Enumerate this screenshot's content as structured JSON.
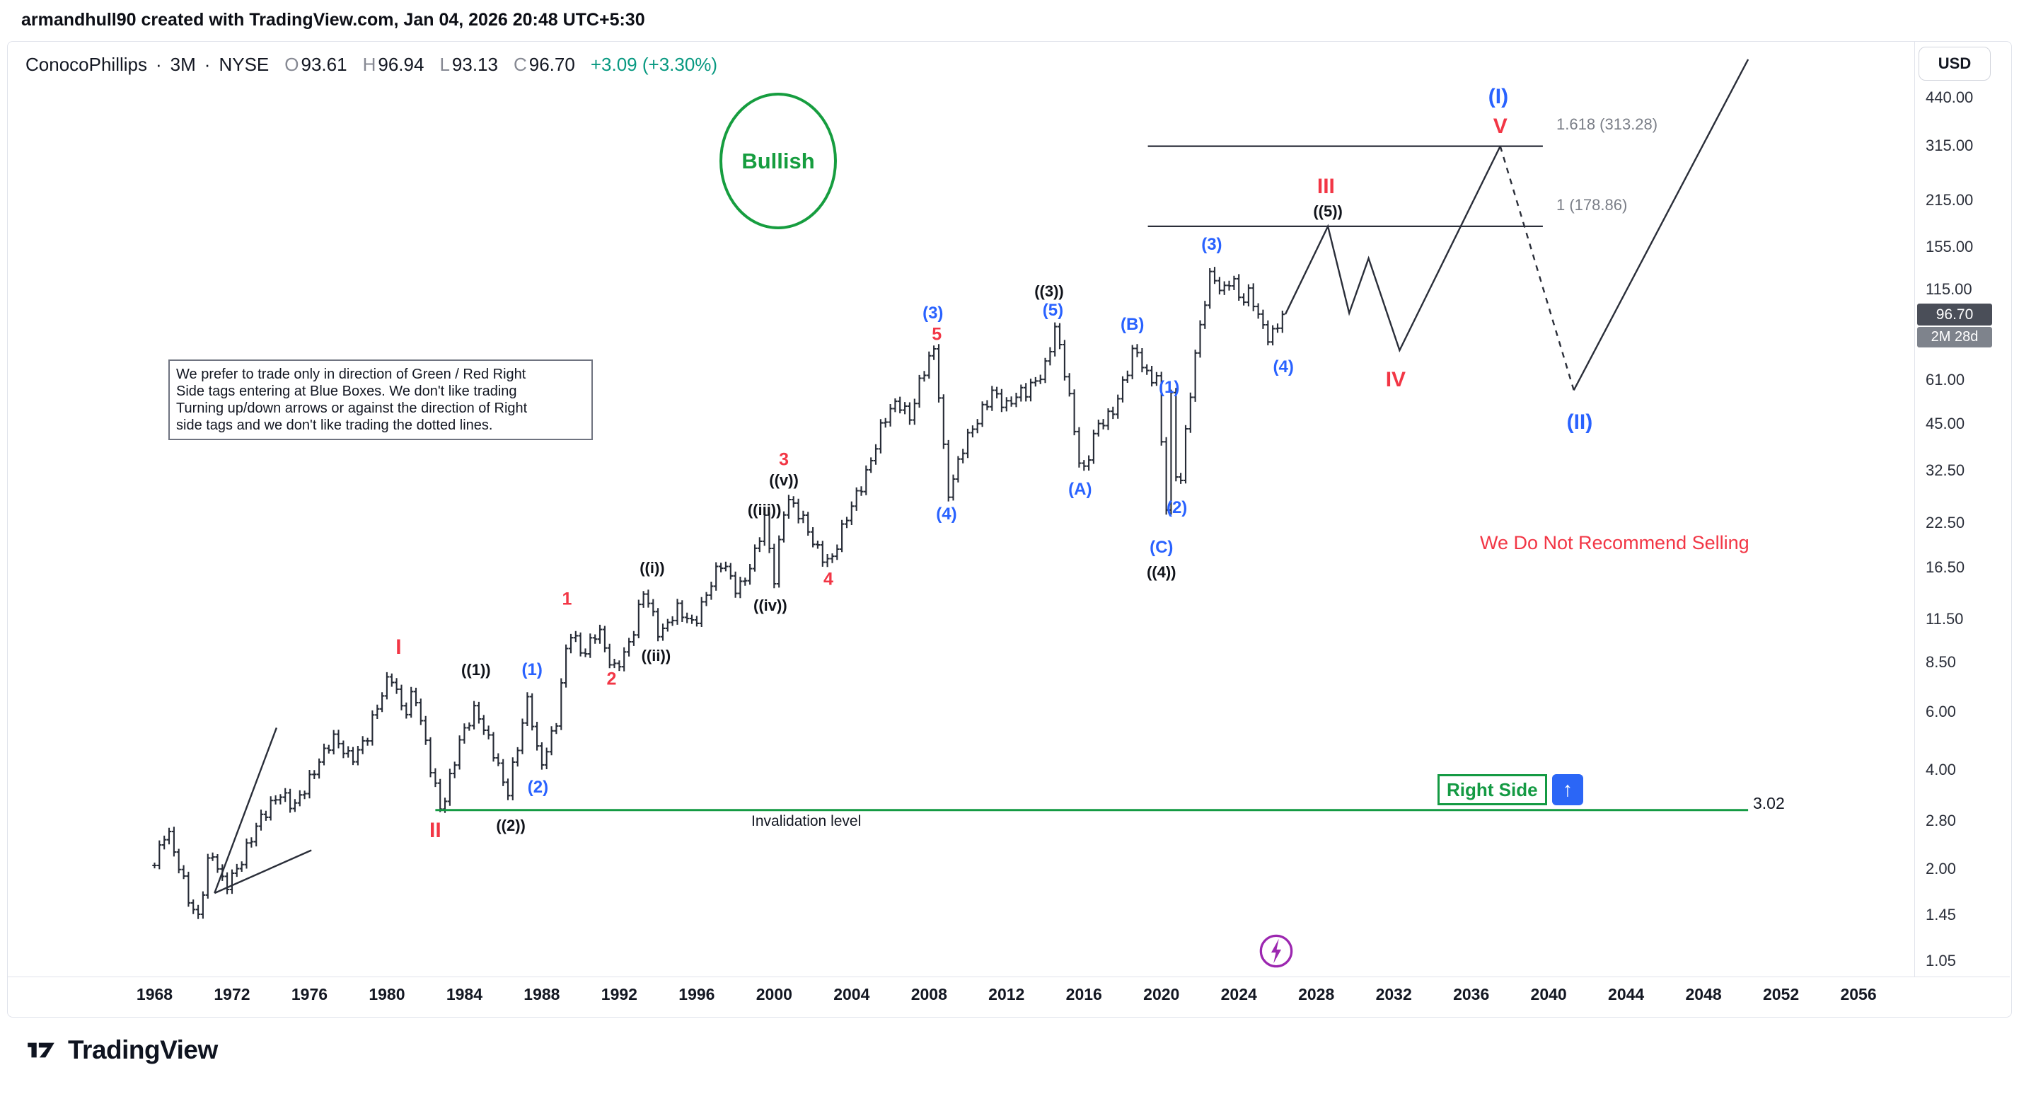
{
  "top_bar": {
    "attribution": "armandhull90 created with TradingView.com, Jan 04, 2026 20:48 UTC+5:30"
  },
  "header": {
    "symbol": "ConocoPhillips",
    "sep": "·",
    "interval": "3M",
    "exchange": "NYSE",
    "o_label": "O",
    "o": "93.61",
    "h_label": "H",
    "h": "96.94",
    "l_label": "L",
    "l": "93.13",
    "c_label": "C",
    "c": "96.70",
    "change": "+3.09 (+3.30%)"
  },
  "price_axis": {
    "currency": "USD",
    "ticks": [
      "440.00",
      "315.00",
      "215.00",
      "155.00",
      "115.00",
      "61.00",
      "45.00",
      "32.50",
      "22.50",
      "16.50",
      "11.50",
      "8.50",
      "6.00",
      "4.00",
      "2.80",
      "2.00",
      "1.45",
      "1.05"
    ],
    "last_price": "96.70",
    "countdown": "2M 28d"
  },
  "x_axis": {
    "years": [
      "1968",
      "1972",
      "1976",
      "1980",
      "1984",
      "1988",
      "1992",
      "1996",
      "2000",
      "2004",
      "2008",
      "2012",
      "2016",
      "2020",
      "2024",
      "2028",
      "2032",
      "2036",
      "2040",
      "2044",
      "2048",
      "2052",
      "2056"
    ]
  },
  "annotations": {
    "bullish_label": "Bullish",
    "textbox_lines": [
      "We prefer to trade only in direction of Green / Red Right",
      "Side tags entering at Blue Boxes. We don't like trading",
      "Turning up/down arrows or against the direction of Right",
      "side tags and we don't like trading the dotted lines."
    ],
    "right_side_label": "Right Side",
    "up_arrow": "↑",
    "no_sell_text": "We Do Not Recommend Selling"
  },
  "wave_labels": [
    {
      "text": "I",
      "year": 1980.6,
      "price": 9.4,
      "color": "red",
      "big": true
    },
    {
      "text": "II",
      "year": 1982.5,
      "price": 2.61,
      "color": "red",
      "big": true
    },
    {
      "text": "1",
      "year": 1989.3,
      "price": 13.2,
      "color": "red"
    },
    {
      "text": "2",
      "year": 1991.6,
      "price": 7.55,
      "color": "red"
    },
    {
      "text": "3",
      "year": 2000.5,
      "price": 34.9,
      "color": "red"
    },
    {
      "text": "4",
      "year": 2002.8,
      "price": 15.1,
      "color": "red"
    },
    {
      "text": "5",
      "year": 2008.4,
      "price": 83.7,
      "color": "red"
    },
    {
      "text": "III",
      "year": 2028.5,
      "price": 236,
      "color": "red",
      "big": true
    },
    {
      "text": "IV",
      "year": 2032.1,
      "price": 61,
      "color": "red",
      "big": true
    },
    {
      "text": "V",
      "year": 2037.5,
      "price": 360,
      "color": "red",
      "big": true
    },
    {
      "text": "(I)",
      "year": 2037.4,
      "price": 443,
      "color": "blue",
      "big": true
    },
    {
      "text": "(II)",
      "year": 2041.6,
      "price": 45.3,
      "color": "blue",
      "big": true
    },
    {
      "text": "(1)",
      "year": 1987.5,
      "price": 8.04,
      "color": "blue"
    },
    {
      "text": "(2)",
      "year": 1987.8,
      "price": 3.54,
      "color": "blue"
    },
    {
      "text": "(3)",
      "year": 2008.2,
      "price": 97.5,
      "color": "blue"
    },
    {
      "text": "(4)",
      "year": 2008.9,
      "price": 23.9,
      "color": "blue"
    },
    {
      "text": "(5)",
      "year": 2014.4,
      "price": 99.3,
      "color": "blue"
    },
    {
      "text": "(A)",
      "year": 2015.8,
      "price": 28.4,
      "color": "blue"
    },
    {
      "text": "(B)",
      "year": 2018.5,
      "price": 90,
      "color": "blue"
    },
    {
      "text": "(C)",
      "year": 2020.0,
      "price": 18.9,
      "color": "blue"
    },
    {
      "text": "(1)",
      "year": 2020.4,
      "price": 57.8,
      "color": "blue"
    },
    {
      "text": "(2)",
      "year": 2020.8,
      "price": 25.0,
      "color": "blue"
    },
    {
      "text": "(3)",
      "year": 2022.6,
      "price": 157,
      "color": "blue"
    },
    {
      "text": "(4)",
      "year": 2026.3,
      "price": 66.8,
      "color": "blue"
    },
    {
      "text": "((1))",
      "year": 1984.6,
      "price": 8.04,
      "color": "black"
    },
    {
      "text": "((2))",
      "year": 1986.4,
      "price": 2.7,
      "color": "black"
    },
    {
      "text": "((3))",
      "year": 2014.2,
      "price": 113.6,
      "color": "black"
    },
    {
      "text": "((4))",
      "year": 2020.0,
      "price": 15.9,
      "color": "black"
    },
    {
      "text": "((5))",
      "year": 2028.6,
      "price": 198.7,
      "color": "black"
    },
    {
      "text": "((i))",
      "year": 1993.7,
      "price": 16.4,
      "color": "black"
    },
    {
      "text": "((ii))",
      "year": 1993.9,
      "price": 8.88,
      "color": "black"
    },
    {
      "text": "((iii))",
      "year": 1999.5,
      "price": 24.6,
      "color": "black"
    },
    {
      "text": "((iv))",
      "year": 1999.8,
      "price": 12.6,
      "color": "black"
    },
    {
      "text": "((v))",
      "year": 2000.5,
      "price": 30.2,
      "color": "black"
    }
  ],
  "chart_data": {
    "type": "ohlc-bar",
    "symbol": "ConocoPhillips",
    "timeframe": "3M",
    "scale": "log",
    "x_range": [
      1968,
      2056
    ],
    "y_ticks": [
      440,
      315,
      215,
      155,
      115,
      61,
      45,
      32.5,
      22.5,
      16.5,
      11.5,
      8.5,
      6,
      4,
      2.8,
      2,
      1.45,
      1.05
    ],
    "price_keypoints": [
      [
        1968.0,
        2.05
      ],
      [
        1968.6,
        2.6
      ],
      [
        1969.4,
        1.95
      ],
      [
        1970.2,
        1.38
      ],
      [
        1970.9,
        2.25
      ],
      [
        1971.6,
        1.8
      ],
      [
        1972.6,
        2.15
      ],
      [
        1973.6,
        2.95
      ],
      [
        1974.4,
        3.45
      ],
      [
        1975.2,
        3.0
      ],
      [
        1976.4,
        4.25
      ],
      [
        1977.2,
        4.9
      ],
      [
        1978.1,
        4.35
      ],
      [
        1979.0,
        5.1
      ],
      [
        1979.6,
        6.3
      ],
      [
        1980.2,
        7.9
      ],
      [
        1980.9,
        6.0
      ],
      [
        1981.4,
        6.9
      ],
      [
        1982.1,
        4.4
      ],
      [
        1982.8,
        3.05
      ],
      [
        1983.7,
        4.7
      ],
      [
        1984.6,
        6.2
      ],
      [
        1985.4,
        4.8
      ],
      [
        1986.2,
        3.25
      ],
      [
        1987.3,
        6.9
      ],
      [
        1987.9,
        4.0
      ],
      [
        1988.7,
        5.3
      ],
      [
        1989.4,
        11.0
      ],
      [
        1990.2,
        8.8
      ],
      [
        1990.9,
        10.6
      ],
      [
        1991.7,
        8.2
      ],
      [
        1992.6,
        9.6
      ],
      [
        1993.3,
        14.2
      ],
      [
        1994.1,
        10.4
      ],
      [
        1995.0,
        12.0
      ],
      [
        1995.8,
        11.2
      ],
      [
        1996.5,
        13.8
      ],
      [
        1997.3,
        16.8
      ],
      [
        1998.1,
        14.2
      ],
      [
        1998.9,
        17.2
      ],
      [
        1999.5,
        22.6
      ],
      [
        2000.0,
        15.2
      ],
      [
        2000.6,
        27.8
      ],
      [
        2001.4,
        23.0
      ],
      [
        2002.1,
        19.0
      ],
      [
        2002.9,
        17.3
      ],
      [
        2003.7,
        22.5
      ],
      [
        2004.6,
        30.5
      ],
      [
        2005.6,
        45.0
      ],
      [
        2006.4,
        52.0
      ],
      [
        2007.0,
        48.0
      ],
      [
        2007.6,
        63.0
      ],
      [
        2008.3,
        74.5
      ],
      [
        2008.95,
        27.5
      ],
      [
        2009.7,
        38.0
      ],
      [
        2010.5,
        45.0
      ],
      [
        2011.3,
        58.0
      ],
      [
        2012.0,
        51.0
      ],
      [
        2013.0,
        56.0
      ],
      [
        2014.0,
        68.0
      ],
      [
        2014.5,
        87.0
      ],
      [
        2015.1,
        60.0
      ],
      [
        2015.9,
        31.5
      ],
      [
        2016.6,
        43.0
      ],
      [
        2017.4,
        47.0
      ],
      [
        2018.6,
        78.0
      ],
      [
        2019.3,
        60.0
      ],
      [
        2019.9,
        63.0
      ],
      [
        2020.15,
        19.5
      ],
      [
        2020.5,
        55.0
      ],
      [
        2020.85,
        25.5
      ],
      [
        2021.6,
        62.0
      ],
      [
        2022.1,
        98.0
      ],
      [
        2022.6,
        137.0
      ],
      [
        2023.1,
        110.0
      ],
      [
        2023.6,
        123.0
      ],
      [
        2024.1,
        105.0
      ],
      [
        2024.6,
        116.0
      ],
      [
        2025.1,
        93.0
      ],
      [
        2025.6,
        79.0
      ],
      [
        2026.1,
        90.0
      ],
      [
        2026.4,
        96.7
      ]
    ],
    "projection_solid": [
      [
        2026.4,
        96.7
      ],
      [
        2028.6,
        178.86
      ],
      [
        2029.7,
        97.5
      ],
      [
        2030.7,
        143
      ],
      [
        2032.3,
        75.2
      ],
      [
        2037.5,
        313.28
      ]
    ],
    "projection_dashed": [
      [
        2037.5,
        313.28
      ],
      [
        2041.3,
        56.9
      ]
    ],
    "projection_final": [
      [
        2041.3,
        56.9
      ],
      [
        2050.3,
        575
      ]
    ],
    "wedge_lines": [
      [
        [
          1971.1,
          1.69
        ],
        [
          1974.3,
          5.37
        ]
      ],
      [
        [
          1971.1,
          1.69
        ],
        [
          1976.1,
          2.28
        ]
      ]
    ],
    "fib_levels": [
      {
        "label": "1.618 (313.28)",
        "price": 313.28,
        "from": 2019.3,
        "to": 2039.7
      },
      {
        "label": "1 (178.86)",
        "price": 178.86,
        "from": 2019.3,
        "to": 2039.7
      }
    ],
    "invalidation": {
      "label": "Invalidation level",
      "price": 3.02,
      "from": 1982.5,
      "to": 2050.3
    }
  },
  "logo": {
    "brand": "TradingView"
  },
  "colors": {
    "red": "#f23645",
    "blue": "#2962ff",
    "green": "#149a43",
    "change_green": "#089981",
    "purple": "#9c27b0",
    "bar": "#262b36"
  }
}
